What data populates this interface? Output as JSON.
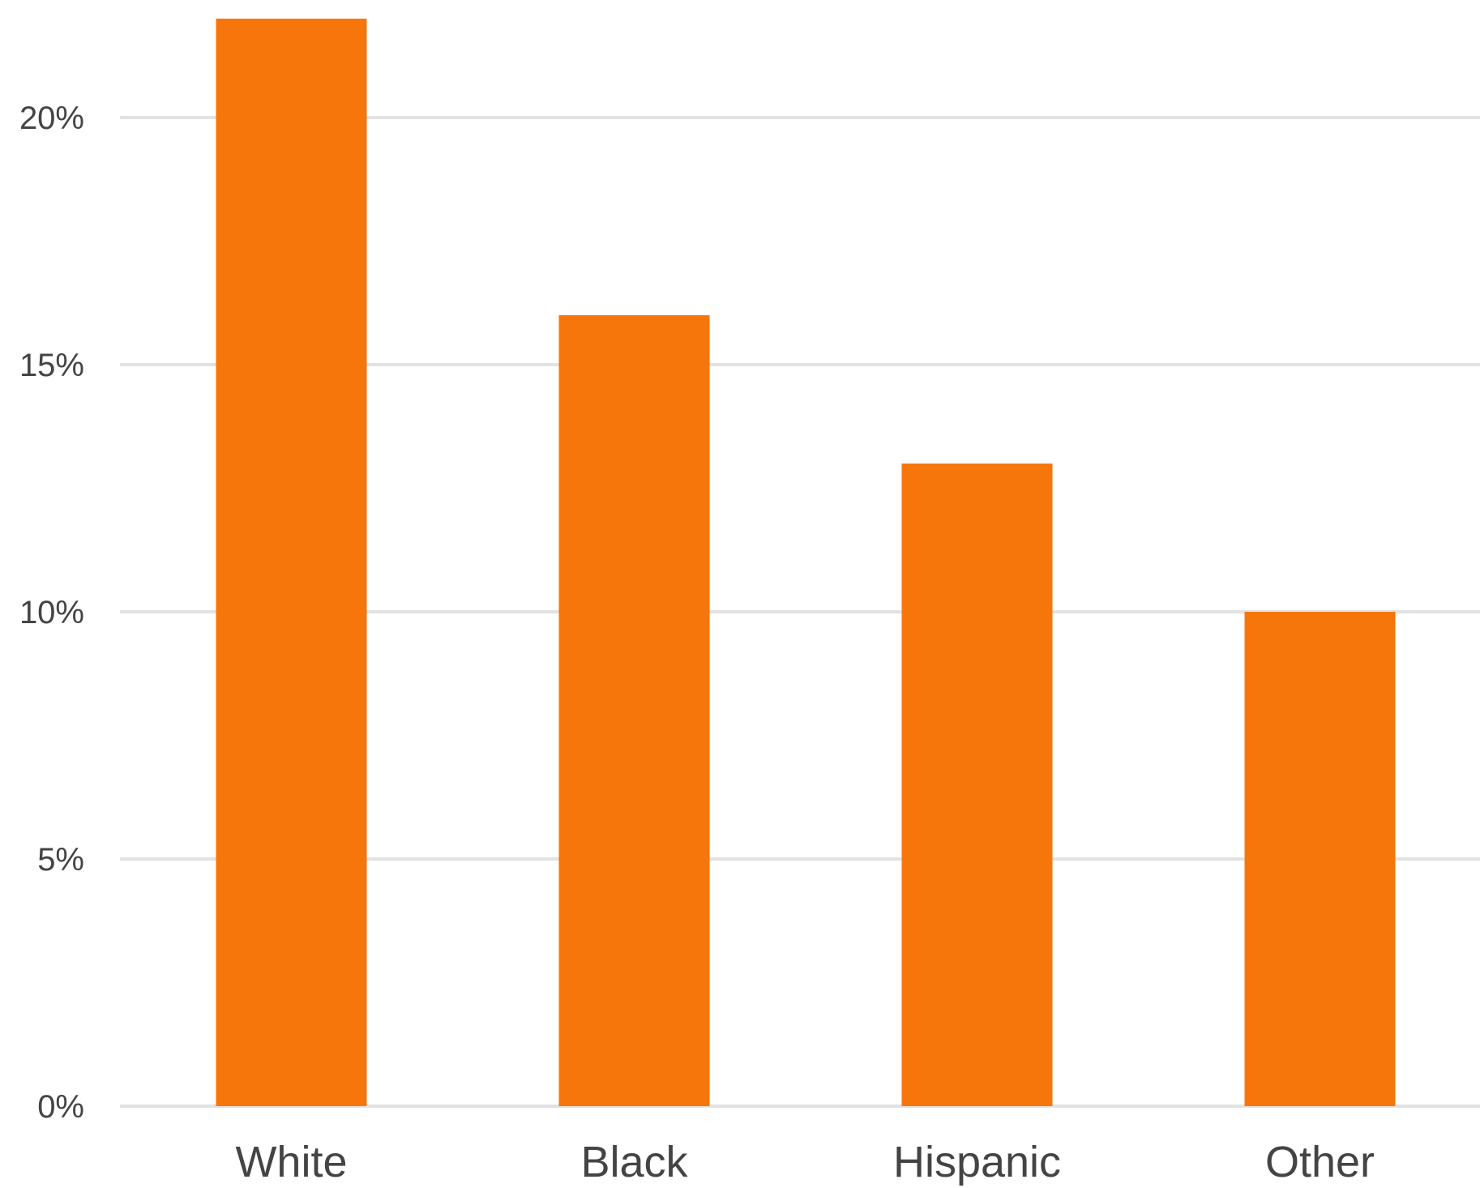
{
  "chart_data": {
    "type": "bar",
    "categories": [
      "White",
      "Black",
      "Hispanic",
      "Other"
    ],
    "values": [
      22,
      16,
      13,
      10
    ],
    "y_ticks": [
      "0%",
      "5%",
      "10%",
      "15%",
      "20%"
    ],
    "y_tick_values": [
      0,
      5,
      10,
      15,
      20
    ],
    "ylim": [
      0,
      22
    ],
    "grid": true,
    "bar_color": "#f7760b",
    "grid_color": "#e2e2e2",
    "title": "",
    "xlabel": "",
    "ylabel": ""
  }
}
